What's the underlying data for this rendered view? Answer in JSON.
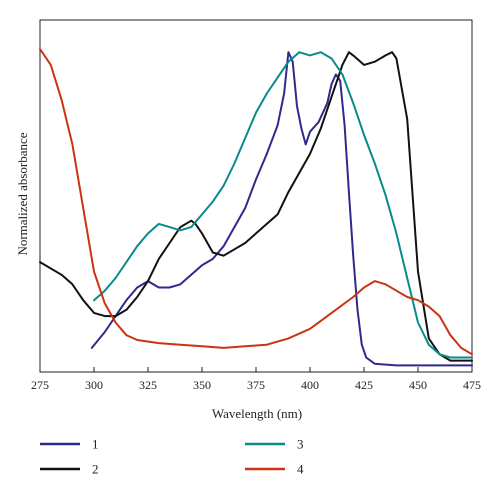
{
  "chart_data": {
    "type": "line",
    "xlabel": "Wavelength (nm)",
    "ylabel": "Normalized absorbance",
    "xlim": [
      275,
      475
    ],
    "ylim": [
      0,
      1
    ],
    "x_ticks": [
      "275",
      "300",
      "325",
      "350",
      "375",
      "400",
      "425",
      "450",
      "475"
    ],
    "grid": false,
    "legend_position": "bottom",
    "series": [
      {
        "name": "1",
        "color": "#2e2a8c",
        "x": [
          299,
          305,
          310,
          315,
          320,
          325,
          330,
          335,
          340,
          345,
          350,
          355,
          360,
          365,
          370,
          375,
          380,
          385,
          388,
          390,
          392,
          394,
          396,
          398,
          400,
          404,
          408,
          410,
          412,
          414,
          416,
          418,
          420,
          422,
          424,
          426,
          430,
          440,
          450,
          460,
          475
        ],
        "y": [
          0.06,
          0.11,
          0.16,
          0.21,
          0.25,
          0.27,
          0.25,
          0.25,
          0.26,
          0.29,
          0.32,
          0.34,
          0.38,
          0.44,
          0.5,
          0.59,
          0.67,
          0.76,
          0.86,
          0.99,
          0.96,
          0.82,
          0.75,
          0.7,
          0.74,
          0.77,
          0.83,
          0.89,
          0.92,
          0.9,
          0.76,
          0.55,
          0.35,
          0.18,
          0.07,
          0.03,
          0.01,
          0.005,
          0.005,
          0.005,
          0.005
        ]
      },
      {
        "name": "2",
        "color": "#111111",
        "x": [
          275,
          285,
          290,
          295,
          300,
          305,
          310,
          315,
          320,
          325,
          330,
          335,
          340,
          345,
          347,
          350,
          355,
          360,
          365,
          370,
          375,
          380,
          385,
          390,
          395,
          400,
          405,
          410,
          415,
          418,
          420,
          425,
          430,
          435,
          438,
          440,
          445,
          450,
          455,
          460,
          465,
          475
        ],
        "y": [
          0.33,
          0.29,
          0.26,
          0.21,
          0.17,
          0.16,
          0.16,
          0.18,
          0.22,
          0.27,
          0.34,
          0.39,
          0.44,
          0.46,
          0.45,
          0.42,
          0.36,
          0.35,
          0.37,
          0.39,
          0.42,
          0.45,
          0.48,
          0.55,
          0.61,
          0.67,
          0.75,
          0.85,
          0.95,
          0.99,
          0.98,
          0.95,
          0.96,
          0.98,
          0.99,
          0.97,
          0.78,
          0.3,
          0.09,
          0.04,
          0.02,
          0.02
        ]
      },
      {
        "name": "3",
        "color": "#0a8a8a",
        "x": [
          300,
          305,
          310,
          315,
          320,
          325,
          330,
          335,
          340,
          345,
          350,
          355,
          360,
          365,
          370,
          375,
          380,
          385,
          390,
          395,
          400,
          405,
          410,
          415,
          420,
          425,
          430,
          435,
          440,
          445,
          450,
          455,
          460,
          465,
          475
        ],
        "y": [
          0.21,
          0.24,
          0.28,
          0.33,
          0.38,
          0.42,
          0.45,
          0.44,
          0.43,
          0.44,
          0.48,
          0.52,
          0.57,
          0.64,
          0.72,
          0.8,
          0.86,
          0.91,
          0.96,
          0.99,
          0.98,
          0.99,
          0.97,
          0.92,
          0.83,
          0.73,
          0.64,
          0.54,
          0.42,
          0.28,
          0.14,
          0.07,
          0.04,
          0.03,
          0.03
        ]
      },
      {
        "name": "4",
        "color": "#cc3311",
        "x": [
          275,
          280,
          285,
          290,
          295,
          300,
          305,
          310,
          315,
          320,
          330,
          340,
          350,
          360,
          370,
          380,
          390,
          400,
          410,
          420,
          425,
          430,
          435,
          440,
          445,
          450,
          455,
          460,
          465,
          470,
          475
        ],
        "y": [
          1.0,
          0.95,
          0.84,
          0.7,
          0.5,
          0.3,
          0.2,
          0.14,
          0.1,
          0.085,
          0.075,
          0.07,
          0.065,
          0.06,
          0.065,
          0.07,
          0.09,
          0.12,
          0.17,
          0.22,
          0.25,
          0.27,
          0.26,
          0.24,
          0.22,
          0.21,
          0.19,
          0.16,
          0.1,
          0.06,
          0.04
        ]
      }
    ]
  }
}
